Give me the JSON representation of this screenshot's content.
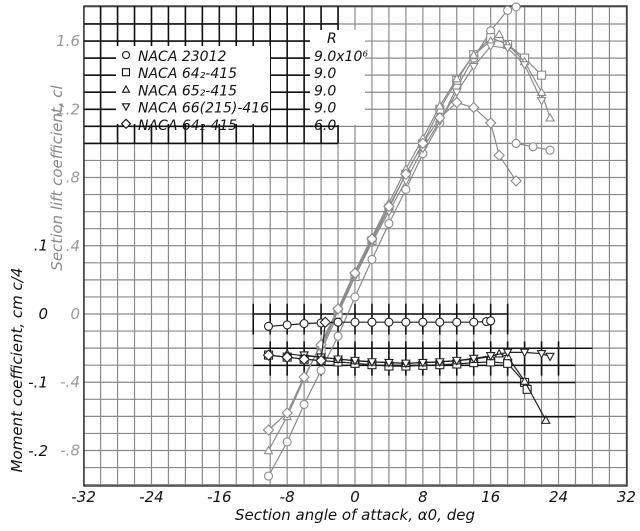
{
  "chart_data": {
    "type": "line",
    "title": "",
    "xlabel": "Section angle of attack, α0, deg",
    "ylabel_lift": "Section lift coefficient, cl",
    "ylabel_moment": "Moment coefficient, cm c/4",
    "xlim": [
      -32,
      32
    ],
    "ylim_lift": [
      -1.0,
      1.8
    ],
    "ylim_moment": [
      -0.25,
      0.15
    ],
    "x_ticks": [
      -32,
      -24,
      -16,
      -8,
      0,
      8,
      16,
      24,
      32
    ],
    "x_tick_labels": [
      "-32",
      "-24",
      "-16",
      "-8",
      "0",
      "8",
      "16",
      "24",
      "32"
    ],
    "lift_ticks": [
      -0.8,
      -0.4,
      0,
      0.4,
      0.8,
      1.2,
      1.6
    ],
    "lift_tick_labels": [
      "-.8",
      "-.4",
      "0",
      ".4",
      ".8",
      "1.2",
      "1.6"
    ],
    "moment_ticks": [
      -0.2,
      -0.1,
      0,
      0.1
    ],
    "moment_tick_labels": [
      "-.2",
      "-.1",
      "0",
      ".1"
    ],
    "grid": true,
    "legend": {
      "position": "upper-left",
      "header": "R",
      "entries": [
        {
          "marker": "circle",
          "name": "NACA 23012",
          "R": "9.0x10⁶"
        },
        {
          "marker": "square",
          "name": "NACA 64₂-415",
          "R": "9.0"
        },
        {
          "marker": "triangle-up",
          "name": "NACA 65₂-415",
          "R": "9.0"
        },
        {
          "marker": "triangle-down",
          "name": "NACA 66(215)-416",
          "R": "9.0"
        },
        {
          "marker": "diamond",
          "name": "NACA 64₂-415",
          "R": "6.0"
        }
      ]
    },
    "lift_series": [
      {
        "name": "NACA 23012 R=9.0x10^6",
        "marker": "circle",
        "x": [
          -10.2,
          -8,
          -6,
          -4,
          -2,
          0,
          2,
          4,
          6,
          8,
          10,
          12,
          14,
          16,
          18,
          19,
          19,
          21,
          23
        ],
        "y": [
          -0.95,
          -0.75,
          -0.53,
          -0.33,
          -0.13,
          0.1,
          0.32,
          0.53,
          0.73,
          0.94,
          1.12,
          1.33,
          1.5,
          1.66,
          1.78,
          1.8,
          1.0,
          0.98,
          0.96
        ]
      },
      {
        "name": "NACA 64_2-415 R=9.0",
        "marker": "square",
        "x": [
          -4,
          -2,
          0,
          2,
          4,
          6,
          8,
          10,
          12,
          14,
          16,
          18,
          20,
          22
        ],
        "y": [
          -0.22,
          0.0,
          0.22,
          0.43,
          0.62,
          0.82,
          1.0,
          1.2,
          1.37,
          1.52,
          1.62,
          1.58,
          1.5,
          1.4
        ]
      },
      {
        "name": "NACA 65_2-415 R=9.0",
        "marker": "triangle-up",
        "x": [
          -10.2,
          -8,
          -6,
          -4,
          -2,
          0,
          2,
          4,
          6,
          8,
          10,
          12,
          14,
          16,
          17,
          18,
          20,
          22,
          23
        ],
        "y": [
          -0.8,
          -0.6,
          -0.38,
          -0.17,
          0.03,
          0.25,
          0.45,
          0.65,
          0.85,
          1.03,
          1.22,
          1.38,
          1.52,
          1.6,
          1.64,
          1.58,
          1.48,
          1.3,
          1.15
        ]
      },
      {
        "name": "NACA 66(215)-416 R=9.0",
        "marker": "triangle-down",
        "x": [
          -4,
          -2,
          0,
          2,
          4,
          6,
          8,
          10,
          12,
          14,
          16,
          18,
          20,
          22
        ],
        "y": [
          -0.2,
          0.02,
          0.22,
          0.42,
          0.6,
          0.78,
          0.97,
          1.13,
          1.3,
          1.45,
          1.57,
          1.56,
          1.46,
          1.25
        ]
      },
      {
        "name": "NACA 64_2-415 R=6.0",
        "marker": "diamond",
        "x": [
          -10.2,
          -8,
          -6,
          -4,
          -2,
          0,
          2,
          4,
          6,
          8,
          10,
          12,
          14,
          16,
          17,
          19
        ],
        "y": [
          -0.68,
          -0.58,
          -0.37,
          -0.18,
          0.03,
          0.24,
          0.44,
          0.63,
          0.82,
          1.0,
          1.15,
          1.24,
          1.21,
          1.12,
          0.93,
          0.78
        ]
      }
    ],
    "moment_series": [
      {
        "name": "NACA 23012 R=9.0x10^6",
        "marker": "circle",
        "x": [
          -10.2,
          -8,
          -6,
          -4,
          -2,
          0,
          2,
          4,
          6,
          8,
          10,
          12,
          14,
          15.5,
          16
        ],
        "y": [
          -0.018,
          -0.016,
          -0.014,
          -0.013,
          -0.012,
          -0.012,
          -0.012,
          -0.012,
          -0.012,
          -0.012,
          -0.012,
          -0.012,
          -0.012,
          -0.011,
          -0.01
        ]
      },
      {
        "name": "NACA 64_2-415 R=9.0",
        "marker": "square",
        "x": [
          -10.2,
          -8,
          -6,
          -4,
          -2,
          0,
          2,
          4,
          6,
          8,
          10,
          12,
          14,
          16,
          18,
          20,
          20.3
        ],
        "y": [
          -0.06,
          -0.063,
          -0.066,
          -0.068,
          -0.07,
          -0.072,
          -0.074,
          -0.076,
          -0.076,
          -0.075,
          -0.074,
          -0.073,
          -0.071,
          -0.07,
          -0.072,
          -0.1,
          -0.11
        ]
      },
      {
        "name": "NACA 65_2-415 R=9.0",
        "marker": "triangle-up",
        "x": [
          -8,
          -6,
          -4,
          -2,
          0,
          2,
          4,
          6,
          8,
          10,
          12,
          14,
          16,
          17,
          18,
          20,
          22.5
        ],
        "y": [
          -0.058,
          -0.061,
          -0.063,
          -0.066,
          -0.068,
          -0.07,
          -0.071,
          -0.072,
          -0.071,
          -0.07,
          -0.068,
          -0.066,
          -0.062,
          -0.058,
          -0.062,
          -0.098,
          -0.155
        ]
      },
      {
        "name": "NACA 66(215)-416 R=9.0",
        "marker": "triangle-down",
        "x": [
          -6,
          -4,
          -2,
          0,
          2,
          4,
          6,
          8,
          10,
          12,
          14,
          16,
          18,
          20,
          22,
          23
        ],
        "y": [
          -0.06,
          -0.063,
          -0.066,
          -0.068,
          -0.07,
          -0.071,
          -0.072,
          -0.071,
          -0.07,
          -0.068,
          -0.065,
          -0.061,
          -0.056,
          -0.056,
          -0.058,
          -0.062
        ]
      },
      {
        "name": "NACA 64_2-415 R=6.0",
        "marker": "diamond",
        "x": [
          -10.2,
          -8,
          -6,
          -4,
          -3.5
        ],
        "y": [
          -0.06,
          -0.063,
          -0.066,
          -0.068,
          -0.012
        ]
      }
    ]
  }
}
